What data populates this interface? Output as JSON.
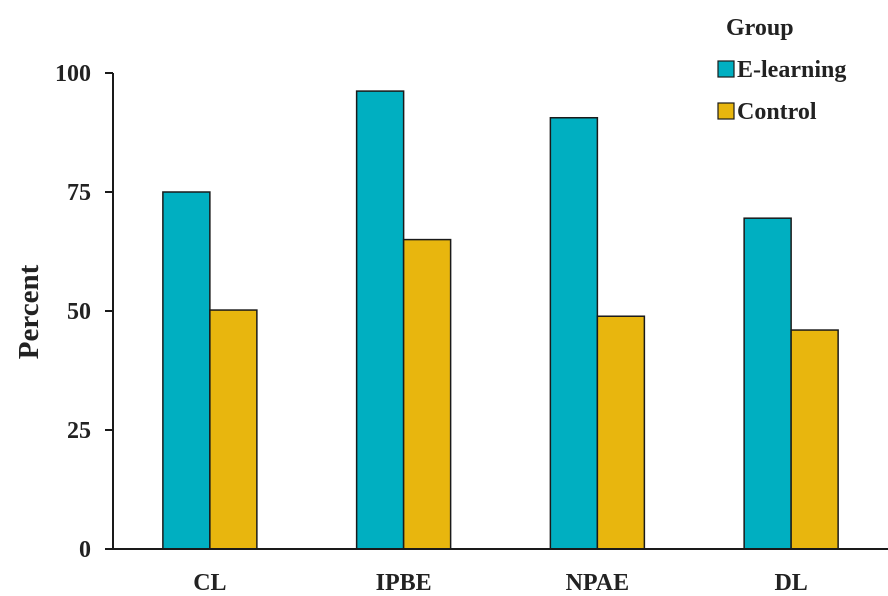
{
  "chart_data": {
    "type": "bar",
    "categories": [
      "CL",
      "IPBE",
      "NPAE",
      "DL"
    ],
    "series": [
      {
        "name": "E-learning",
        "values": [
          75,
          96.2,
          90.6,
          69.5
        ],
        "color": "#00AFC1"
      },
      {
        "name": "Control",
        "values": [
          50.2,
          65,
          48.9,
          46
        ],
        "color": "#E8B60E"
      }
    ],
    "title": "",
    "xlabel": "",
    "ylabel": "Percent",
    "ylim": [
      0,
      100
    ],
    "yticks": [
      0,
      25,
      50,
      75,
      100
    ],
    "legend": {
      "title": "Group",
      "placement": "top-right"
    },
    "grid": false,
    "outline_color": "#1a1a1a"
  }
}
